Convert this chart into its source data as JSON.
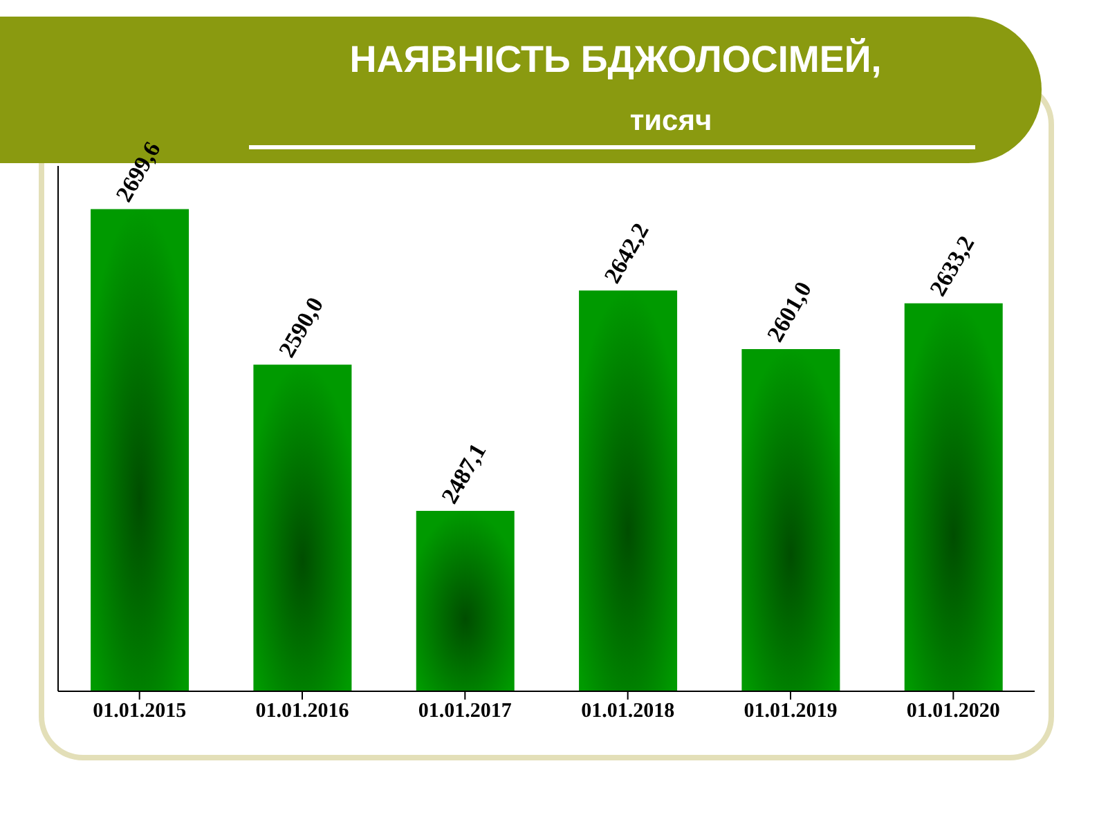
{
  "chart_data": {
    "type": "bar",
    "title": "НАЯВНІСТЬ БДЖОЛОСІМЕЙ,",
    "subtitle": "тисяч",
    "categories": [
      "01.01.2015",
      "01.01.2016",
      "01.01.2017",
      "01.01.2018",
      "01.01.2019",
      "01.01.2020"
    ],
    "values": [
      2699.6,
      2590.0,
      2487.1,
      2642.2,
      2601.0,
      2633.2
    ],
    "value_labels": [
      "2699,6",
      "2590,0",
      "2487,1",
      "2642,2",
      "2601,0",
      "2633,2"
    ],
    "color": "#009a00",
    "ylim": [
      2360,
      2730
    ],
    "tick_labels": "x",
    "grid": false,
    "legend": false
  }
}
